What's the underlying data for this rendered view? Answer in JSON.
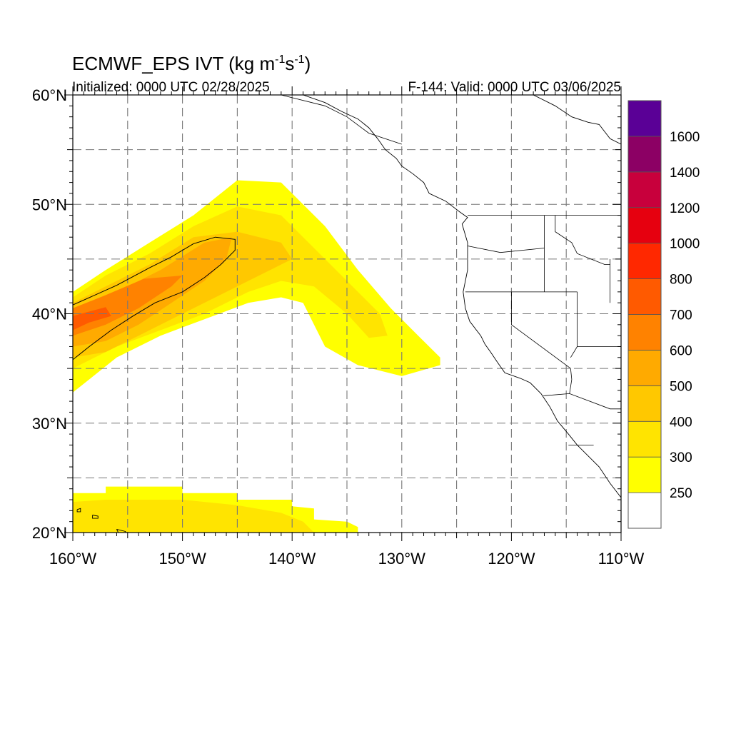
{
  "title": {
    "main": "ECMWF_EPS IVT (kg m",
    "sup1": "-1",
    "mid": "s",
    "sup2": "-1",
    "end": ")"
  },
  "subtitle_left": "Initialized: 0000 UTC 02/28/2025",
  "subtitle_right": "F-144: Valid: 0000 UTC 03/06/2025",
  "chart_data": {
    "type": "heatmap",
    "lon_range": [
      -160,
      -110
    ],
    "lat_range": [
      20,
      60
    ],
    "grid": true,
    "legend_placement": "right",
    "x_ticks": [
      {
        "value": -160,
        "label": "160°W"
      },
      {
        "value": -150,
        "label": "150°W"
      },
      {
        "value": -140,
        "label": "140°W"
      },
      {
        "value": -130,
        "label": "130°W"
      },
      {
        "value": -120,
        "label": "120°W"
      },
      {
        "value": -110,
        "label": "110°W"
      }
    ],
    "y_ticks": [
      {
        "value": 60,
        "label": "60°N"
      },
      {
        "value": 50,
        "label": "50°N"
      },
      {
        "value": 40,
        "label": "40°N"
      },
      {
        "value": 30,
        "label": "30°N"
      },
      {
        "value": 20,
        "label": "20°N"
      }
    ],
    "colorbar": {
      "levels": [
        250,
        300,
        400,
        500,
        600,
        700,
        800,
        1000,
        1200,
        1400,
        1600
      ],
      "labels": [
        "250",
        "300",
        "400",
        "500",
        "600",
        "700",
        "800",
        "1000",
        "1200",
        "1400",
        "1600"
      ],
      "colors": [
        "#ffffff",
        "#ffff00",
        "#ffe400",
        "#ffc800",
        "#ffaa00",
        "#ff8200",
        "#ff5a00",
        "#ff2800",
        "#e6000f",
        "#c8003c",
        "#8c0064",
        "#5a0096"
      ]
    },
    "regions": [
      {
        "name": "north-pacific-plume",
        "layers": [
          {
            "color": "#ffff00",
            "points": [
              [
                -160,
                42
              ],
              [
                -157,
                44
              ],
              [
                -153,
                46.5
              ],
              [
                -149,
                49
              ],
              [
                -145,
                52.2
              ],
              [
                -141,
                52
              ],
              [
                -137,
                48
              ],
              [
                -134,
                44
              ],
              [
                -131,
                40.5
              ],
              [
                -128.5,
                38
              ],
              [
                -126.5,
                36
              ],
              [
                -126.5,
                35.3
              ],
              [
                -130,
                34.3
              ],
              [
                -134,
                35.3
              ],
              [
                -137,
                37
              ],
              [
                -139,
                41
              ],
              [
                -141,
                41.5
              ],
              [
                -144,
                41
              ],
              [
                -148,
                39.5
              ],
              [
                -152,
                38
              ],
              [
                -156,
                36
              ],
              [
                -158.5,
                34
              ],
              [
                -160,
                32.8
              ]
            ]
          },
          {
            "color": "#ffe400",
            "points": [
              [
                -160,
                41.5
              ],
              [
                -157,
                43.5
              ],
              [
                -153,
                45.5
              ],
              [
                -149,
                48
              ],
              [
                -145,
                49.8
              ],
              [
                -141,
                49
              ],
              [
                -138,
                46
              ],
              [
                -135,
                43
              ],
              [
                -132,
                40
              ],
              [
                -131.3,
                38
              ],
              [
                -133,
                37.8
              ],
              [
                -135,
                40
              ],
              [
                -138,
                42.5
              ],
              [
                -141,
                43
              ],
              [
                -144,
                42
              ],
              [
                -148,
                40
              ],
              [
                -152,
                38.5
              ],
              [
                -156,
                37
              ],
              [
                -160,
                35
              ]
            ]
          },
          {
            "color": "#ffc800",
            "points": [
              [
                -160,
                41
              ],
              [
                -157,
                42.5
              ],
              [
                -153,
                44.5
              ],
              [
                -149,
                47
              ],
              [
                -145,
                47.5
              ],
              [
                -141,
                46.5
              ],
              [
                -140,
                45
              ],
              [
                -143,
                43.5
              ],
              [
                -146,
                42
              ],
              [
                -150,
                40
              ],
              [
                -154,
                38
              ],
              [
                -157,
                36.5
              ],
              [
                -160,
                36
              ]
            ]
          },
          {
            "color": "#ffaa00",
            "points": [
              [
                -160,
                40.5
              ],
              [
                -156,
                42
              ],
              [
                -152,
                44
              ],
              [
                -148,
                46.5
              ],
              [
                -145.5,
                47
              ],
              [
                -146,
                45
              ],
              [
                -148,
                43
              ],
              [
                -151,
                41
              ],
              [
                -154,
                39
              ],
              [
                -157,
                37.5
              ],
              [
                -160,
                37
              ]
            ]
          },
          {
            "color": "#ff8200",
            "points": [
              [
                -160,
                40.5
              ],
              [
                -157,
                41.7
              ],
              [
                -153.5,
                43.2
              ],
              [
                -150,
                43.5
              ],
              [
                -151,
                42.5
              ],
              [
                -154,
                40.5
              ],
              [
                -157,
                39
              ],
              [
                -160,
                38
              ]
            ]
          },
          {
            "color": "#ff5a00",
            "points": [
              [
                -160,
                39.8
              ],
              [
                -157,
                40.6
              ],
              [
                -156.5,
                39.8
              ],
              [
                -158.5,
                39.2
              ],
              [
                -160,
                38.5
              ]
            ]
          }
        ]
      },
      {
        "name": "subtropical-band",
        "layers": [
          {
            "color": "#ffff00",
            "points": [
              [
                -160,
                23.6
              ],
              [
                -157,
                23.6
              ],
              [
                -157,
                24.2
              ],
              [
                -150,
                24.2
              ],
              [
                -150,
                23.6
              ],
              [
                -145,
                23.6
              ],
              [
                -145,
                23
              ],
              [
                -140,
                23
              ],
              [
                -140,
                22.4
              ],
              [
                -138,
                22.2
              ],
              [
                -138,
                21.2
              ],
              [
                -135,
                21
              ],
              [
                -134,
                20.5
              ],
              [
                -134,
                20
              ],
              [
                -160,
                20
              ]
            ]
          },
          {
            "color": "#ffe400",
            "points": [
              [
                -160,
                22.8
              ],
              [
                -157,
                23
              ],
              [
                -150,
                23
              ],
              [
                -145,
                22.5
              ],
              [
                -141,
                21.8
              ],
              [
                -139,
                21
              ],
              [
                -138,
                20
              ],
              [
                -160,
                20
              ]
            ]
          }
        ]
      }
    ],
    "contour_600": [
      [
        -160,
        40.8
      ],
      [
        -156,
        42.6
      ],
      [
        -153,
        44.2
      ],
      [
        -151,
        45.2
      ],
      [
        -149,
        46.4
      ],
      [
        -147,
        47
      ],
      [
        -145.2,
        46.8
      ],
      [
        -145.2,
        45.8
      ],
      [
        -146.5,
        44.5
      ],
      [
        -148,
        43.3
      ],
      [
        -150,
        42
      ],
      [
        -152.5,
        41
      ],
      [
        -154.5,
        39.8
      ],
      [
        -156.5,
        38.5
      ],
      [
        -158.5,
        37
      ],
      [
        -160,
        35.8
      ]
    ],
    "coastlines": [
      {
        "name": "north-america-coast",
        "points": [
          [
            -118,
            60
          ],
          [
            -116,
            59
          ],
          [
            -114.5,
            58
          ],
          [
            -113,
            57.5
          ],
          [
            -112,
            57.3
          ],
          [
            -111,
            56
          ],
          [
            -110,
            55.5
          ]
        ]
      },
      {
        "name": "alaska-bc-coast",
        "points": [
          [
            -139,
            60
          ],
          [
            -137,
            59.3
          ],
          [
            -135.5,
            58.5
          ],
          [
            -134,
            57.8
          ],
          [
            -133,
            57
          ],
          [
            -132.2,
            56
          ],
          [
            -131.5,
            55
          ],
          [
            -130.5,
            54.2
          ],
          [
            -130,
            53.5
          ],
          [
            -129,
            52.8
          ],
          [
            -128,
            52
          ],
          [
            -127.5,
            51
          ],
          [
            -126,
            50.3
          ],
          [
            -124.7,
            49.3
          ],
          [
            -124,
            48.8
          ],
          [
            -124.5,
            48.2
          ],
          [
            -124,
            46.5
          ],
          [
            -124,
            44
          ],
          [
            -124.4,
            42
          ],
          [
            -124.2,
            40.5
          ],
          [
            -123.8,
            39.3
          ],
          [
            -122.8,
            38
          ],
          [
            -122.4,
            37.2
          ],
          [
            -121.9,
            36.5
          ],
          [
            -121.3,
            35.6
          ],
          [
            -120.6,
            34.6
          ],
          [
            -119.2,
            34.1
          ],
          [
            -118.3,
            33.7
          ],
          [
            -117.3,
            32.7
          ],
          [
            -116.5,
            31.5
          ],
          [
            -115.8,
            30.2
          ],
          [
            -114.8,
            29
          ],
          [
            -114,
            28
          ],
          [
            -113,
            27
          ],
          [
            -112,
            26
          ],
          [
            -111,
            24.5
          ],
          [
            -110,
            23.2
          ]
        ]
      },
      {
        "name": "hawaii-coast",
        "points": [
          [
            -159.6,
            22.1
          ],
          [
            -159.3,
            22.2
          ],
          [
            -159.3,
            21.9
          ],
          [
            -159.6,
            21.9
          ],
          [
            -159.6,
            22.1
          ]
        ]
      },
      {
        "name": "oahu-coast",
        "points": [
          [
            -158.2,
            21.6
          ],
          [
            -157.7,
            21.5
          ],
          [
            -157.7,
            21.3
          ],
          [
            -158.2,
            21.3
          ],
          [
            -158.2,
            21.6
          ]
        ]
      },
      {
        "name": "big-island-coast",
        "points": [
          [
            -156,
            20.3
          ],
          [
            -155.2,
            20.1
          ],
          [
            -155,
            19.8
          ],
          [
            -155.8,
            19.9
          ],
          [
            -156,
            20.3
          ]
        ]
      }
    ],
    "boundaries": [
      {
        "name": "us-canada-border",
        "points": [
          [
            -124,
            49
          ],
          [
            -110,
            49
          ]
        ]
      },
      {
        "name": "alaska-border",
        "points": [
          [
            -141,
            60
          ],
          [
            -137,
            59
          ],
          [
            -135,
            58
          ],
          [
            -133,
            56.5
          ],
          [
            -130,
            55.5
          ]
        ]
      },
      {
        "name": "washington-oregon",
        "points": [
          [
            -124,
            46.2
          ],
          [
            -121,
            45.6
          ],
          [
            -117,
            46
          ]
        ]
      },
      {
        "name": "idaho-west",
        "points": [
          [
            -117,
            49
          ],
          [
            -117,
            46
          ],
          [
            -117,
            44.2
          ],
          [
            -117,
            42
          ]
        ]
      },
      {
        "name": "oregon-california",
        "points": [
          [
            -124.2,
            42
          ],
          [
            -114,
            42
          ]
        ]
      },
      {
        "name": "california-nevada",
        "points": [
          [
            -120,
            42
          ],
          [
            -120,
            39
          ],
          [
            -114.6,
            35
          ]
        ]
      },
      {
        "name": "nevada-utah",
        "points": [
          [
            -114,
            42
          ],
          [
            -114,
            37
          ],
          [
            -114.6,
            36
          ]
        ]
      },
      {
        "name": "arizona-north",
        "points": [
          [
            -114,
            37
          ],
          [
            -110,
            37
          ]
        ]
      },
      {
        "name": "mexico-border",
        "points": [
          [
            -117.1,
            32.5
          ],
          [
            -114.7,
            32.7
          ],
          [
            -111,
            31.3
          ],
          [
            -110,
            31.3
          ]
        ]
      },
      {
        "name": "california-arizona",
        "points": [
          [
            -114.6,
            35
          ],
          [
            -114.5,
            34
          ],
          [
            -114.7,
            32.7
          ]
        ]
      },
      {
        "name": "baja-border",
        "points": [
          [
            -114.8,
            28
          ],
          [
            -112.5,
            28
          ]
        ]
      },
      {
        "name": "montana-border",
        "points": [
          [
            -116,
            49
          ],
          [
            -116,
            47.5
          ],
          [
            -114.5,
            46.5
          ],
          [
            -114,
            45.5
          ],
          [
            -111.5,
            44.5
          ],
          [
            -111,
            44.5
          ]
        ]
      },
      {
        "name": "wyoming-west",
        "points": [
          [
            -111,
            45
          ],
          [
            -111,
            41
          ]
        ]
      }
    ]
  }
}
